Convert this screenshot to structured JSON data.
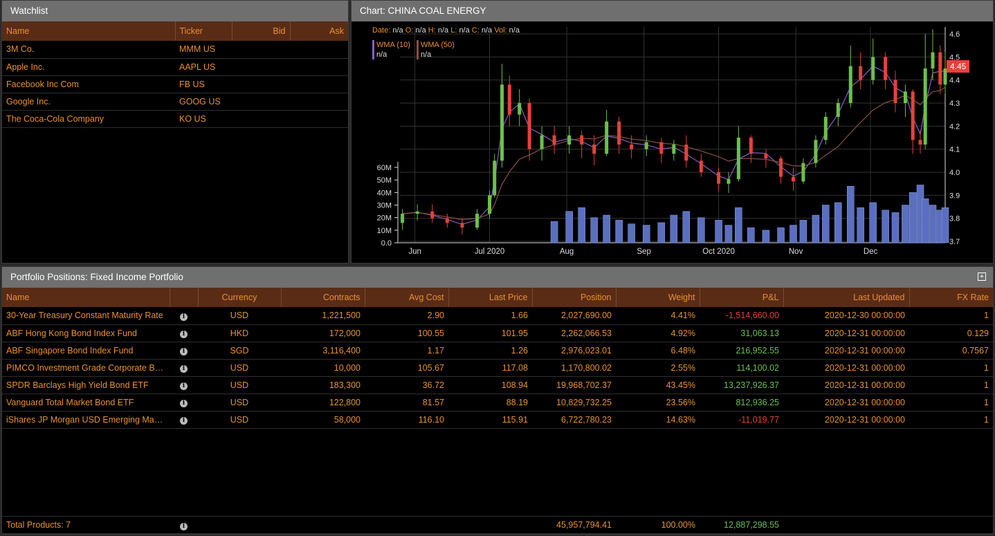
{
  "watchlist": {
    "title": "Watchlist",
    "columns": [
      "Name",
      "Ticker",
      "Bid",
      "Ask"
    ],
    "rows": [
      {
        "name": "3M Co.",
        "ticker": "MMM US"
      },
      {
        "name": "Apple Inc.",
        "ticker": "AAPL US"
      },
      {
        "name": "Facebook Inc Com",
        "ticker": "FB US"
      },
      {
        "name": "Google Inc.",
        "ticker": "GOOG US"
      },
      {
        "name": "The Coca-Cola Company",
        "ticker": "KO US"
      }
    ]
  },
  "chart": {
    "title": "Chart: CHINA COAL ENERGY",
    "ohlc_legend": {
      "date_label": "Date:",
      "date": "n/a",
      "o_label": "O:",
      "o": "n/a",
      "h_label": "H:",
      "h": "n/a",
      "l_label": "L:",
      "l": "n/a",
      "c_label": "C:",
      "c": "n/a",
      "vol_label": "Vol:",
      "vol": "n/a"
    },
    "indicators": [
      {
        "name": "WMA (10)",
        "value": "n/a",
        "color": "#8a5cc8"
      },
      {
        "name": "WMA (50)",
        "value": "n/a",
        "color": "#8a5040"
      }
    ],
    "last_price": "4.45"
  },
  "chart_data": {
    "type": "candlestick",
    "price_ticks": [
      "3.7",
      "3.8",
      "3.9",
      "4.0",
      "4.1",
      "4.2",
      "4.3",
      "4.4",
      "4.5",
      "4.6"
    ],
    "ylim": [
      3.7,
      4.6
    ],
    "volume_ticks": [
      "0.0",
      "10M",
      "20M",
      "30M",
      "40M",
      "50M",
      "60M"
    ],
    "volume_lim": [
      0,
      60000000
    ],
    "x_ticks": [
      {
        "label": "Jun",
        "date": "2020-06-01"
      },
      {
        "label": "Jul 2020",
        "date": "2020-07-01"
      },
      {
        "label": "Aug",
        "date": "2020-08-01"
      },
      {
        "label": "Sep",
        "date": "2020-09-01"
      },
      {
        "label": "Oct 2020",
        "date": "2020-10-01"
      },
      {
        "label": "Nov",
        "date": "2020-11-01"
      },
      {
        "label": "Dec",
        "date": "2020-12-01"
      }
    ],
    "xlim": [
      "2020-05-26",
      "2020-12-31"
    ],
    "colors": {
      "up": "#6cc04a",
      "down": "#e5413a",
      "volume": "#5b6fc0"
    },
    "candles": [
      [
        "2020-05-27",
        3.78,
        3.84,
        3.75,
        3.82,
        null
      ],
      [
        "2020-06-02",
        3.82,
        3.86,
        3.79,
        3.83,
        null
      ],
      [
        "2020-06-08",
        3.83,
        3.86,
        3.78,
        3.8,
        null
      ],
      [
        "2020-06-14",
        3.8,
        3.82,
        3.76,
        3.78,
        null
      ],
      [
        "2020-06-20",
        3.78,
        3.8,
        3.73,
        3.76,
        null
      ],
      [
        "2020-06-26",
        3.76,
        3.84,
        3.75,
        3.82,
        null
      ],
      [
        "2020-07-01",
        3.82,
        3.92,
        3.8,
        3.9,
        null
      ],
      [
        "2020-07-03",
        3.9,
        4.08,
        3.89,
        4.05,
        null
      ],
      [
        "2020-07-06",
        4.05,
        4.47,
        4.02,
        4.38,
        null
      ],
      [
        "2020-07-09",
        4.38,
        4.42,
        4.2,
        4.25,
        null
      ],
      [
        "2020-07-13",
        4.25,
        4.36,
        4.2,
        4.3,
        null
      ],
      [
        "2020-07-17",
        4.3,
        4.32,
        4.05,
        4.1,
        null
      ],
      [
        "2020-07-22",
        4.1,
        4.2,
        4.05,
        4.16,
        null
      ],
      [
        "2020-07-27",
        4.16,
        4.2,
        4.08,
        4.12,
        17000000
      ],
      [
        "2020-08-02",
        4.12,
        4.2,
        4.08,
        4.16,
        25000000
      ],
      [
        "2020-08-07",
        4.16,
        4.18,
        4.06,
        4.12,
        28000000
      ],
      [
        "2020-08-12",
        4.12,
        4.16,
        4.03,
        4.08,
        20000000
      ],
      [
        "2020-08-17",
        4.08,
        4.27,
        4.07,
        4.22,
        22000000
      ],
      [
        "2020-08-22",
        4.22,
        4.24,
        4.08,
        4.12,
        18000000
      ],
      [
        "2020-08-27",
        4.12,
        4.16,
        4.06,
        4.1,
        15000000
      ],
      [
        "2020-09-02",
        4.1,
        4.16,
        4.07,
        4.13,
        14000000
      ],
      [
        "2020-09-08",
        4.13,
        4.15,
        4.04,
        4.08,
        16000000
      ],
      [
        "2020-09-13",
        4.08,
        4.14,
        4.05,
        4.12,
        22000000
      ],
      [
        "2020-09-18",
        4.12,
        4.16,
        4.02,
        4.05,
        25000000
      ],
      [
        "2020-09-24",
        4.05,
        4.08,
        3.98,
        4.0,
        20000000
      ],
      [
        "2020-10-01",
        4.0,
        4.02,
        3.92,
        3.95,
        18000000
      ],
      [
        "2020-10-05",
        3.95,
        4.0,
        3.91,
        3.97,
        14000000
      ],
      [
        "2020-10-09",
        3.97,
        4.2,
        3.96,
        4.15,
        28000000
      ],
      [
        "2020-10-14",
        4.15,
        4.16,
        4.04,
        4.08,
        12000000
      ],
      [
        "2020-10-20",
        4.08,
        4.1,
        4.02,
        4.06,
        10000000
      ],
      [
        "2020-10-26",
        4.06,
        4.07,
        3.95,
        3.98,
        12000000
      ],
      [
        "2020-10-31",
        3.98,
        4.02,
        3.92,
        3.96,
        14000000
      ],
      [
        "2020-11-04",
        3.96,
        4.06,
        3.95,
        4.04,
        18000000
      ],
      [
        "2020-11-09",
        4.04,
        4.16,
        4.02,
        4.14,
        22000000
      ],
      [
        "2020-11-13",
        4.14,
        4.26,
        4.12,
        4.24,
        30000000
      ],
      [
        "2020-11-18",
        4.24,
        4.32,
        4.2,
        4.3,
        32000000
      ],
      [
        "2020-11-23",
        4.3,
        4.55,
        4.28,
        4.46,
        45000000
      ],
      [
        "2020-11-27",
        4.46,
        4.52,
        4.36,
        4.4,
        28000000
      ],
      [
        "2020-12-02",
        4.4,
        4.58,
        4.38,
        4.5,
        32000000
      ],
      [
        "2020-12-07",
        4.5,
        4.52,
        4.36,
        4.4,
        26000000
      ],
      [
        "2020-12-11",
        4.4,
        4.44,
        4.26,
        4.3,
        24000000
      ],
      [
        "2020-12-15",
        4.3,
        4.38,
        4.24,
        4.35,
        30000000
      ],
      [
        "2020-12-18",
        4.35,
        4.36,
        4.08,
        4.14,
        40000000
      ],
      [
        "2020-12-21",
        4.14,
        4.18,
        4.08,
        4.12,
        46000000
      ],
      [
        "2020-12-23",
        4.12,
        4.6,
        4.1,
        4.45,
        35000000
      ],
      [
        "2020-12-26",
        4.45,
        4.62,
        4.4,
        4.52,
        30000000
      ],
      [
        "2020-12-29",
        4.52,
        4.55,
        4.34,
        4.38,
        26000000
      ],
      [
        "2020-12-31",
        4.38,
        4.52,
        4.34,
        4.45,
        28000000
      ]
    ]
  },
  "portfolio": {
    "title": "Portfolio Positions: Fixed Income Portfolio",
    "columns": [
      "Name",
      "",
      "Currency",
      "Contracts",
      "Avg Cost",
      "Last Price",
      "Position",
      "Weight",
      "P&L",
      "Last Updated",
      "FX Rate"
    ],
    "rows": [
      {
        "name": "30-Year Treasury Constant Maturity Rate",
        "currency": "USD",
        "contracts": "1,221,500",
        "avg_cost": "2.90",
        "last_price": "1.66",
        "position": "2,027,690.00",
        "weight": "4.41%",
        "pnl": "-1,514,660.00",
        "updated": "2020-12-30 00:00:00",
        "fx": "1"
      },
      {
        "name": "ABF Hong Kong Bond Index Fund",
        "currency": "HKD",
        "contracts": "172,000",
        "avg_cost": "100.55",
        "last_price": "101.95",
        "position": "2,262,066.53",
        "weight": "4.92%",
        "pnl": "31,063.13",
        "updated": "2020-12-31 00:00:00",
        "fx": "0.129"
      },
      {
        "name": "ABF Singapore Bond Index Fund",
        "currency": "SGD",
        "contracts": "3,116,400",
        "avg_cost": "1.17",
        "last_price": "1.26",
        "position": "2,976,023.01",
        "weight": "6.48%",
        "pnl": "216,952.55",
        "updated": "2020-12-31 00:00:00",
        "fx": "0.7567"
      },
      {
        "name": "PIMCO Investment Grade Corporate Bond",
        "currency": "USD",
        "contracts": "10,000",
        "avg_cost": "105.67",
        "last_price": "117.08",
        "position": "1,170,800.02",
        "weight": "2.55%",
        "pnl": "114,100.02",
        "updated": "2020-12-31 00:00:00",
        "fx": "1"
      },
      {
        "name": "SPDR Barclays High Yield Bond ETF",
        "currency": "USD",
        "contracts": "183,300",
        "avg_cost": "36.72",
        "last_price": "108.94",
        "position": "19,968,702.37",
        "weight": "43.45%",
        "pnl": "13,237,926.37",
        "updated": "2020-12-31 00:00:00",
        "fx": "1"
      },
      {
        "name": "Vanguard Total Market Bond ETF",
        "currency": "USD",
        "contracts": "122,800",
        "avg_cost": "81.57",
        "last_price": "88.19",
        "position": "10,829,732.25",
        "weight": "23.56%",
        "pnl": "812,936.25",
        "updated": "2020-12-31 00:00:00",
        "fx": "1"
      },
      {
        "name": "iShares JP Morgan USD Emerging Markets Bond",
        "currency": "USD",
        "contracts": "58,000",
        "avg_cost": "116.10",
        "last_price": "115.91",
        "position": "6,722,780.23",
        "weight": "14.63%",
        "pnl": "-11,019.77",
        "updated": "2020-12-31 00:00:00",
        "fx": "1"
      }
    ],
    "footer": {
      "label": "Total Products: 7",
      "position": "45,957,794.41",
      "weight": "100.00%",
      "pnl": "12,887,298.55"
    }
  }
}
